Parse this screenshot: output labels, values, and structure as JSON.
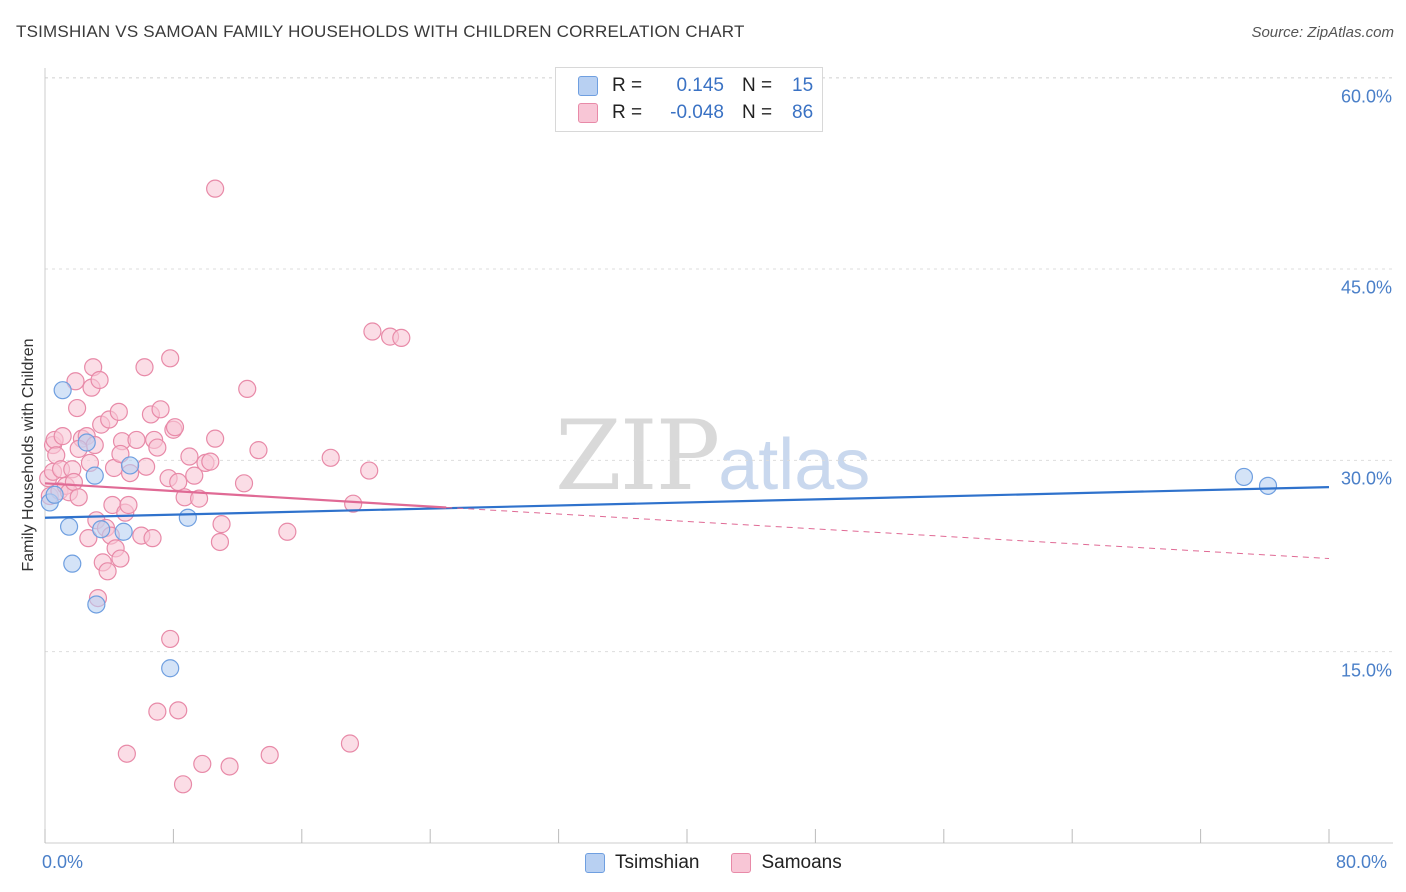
{
  "title": "TSIMSHIAN VS SAMOAN FAMILY HOUSEHOLDS WITH CHILDREN CORRELATION CHART",
  "source": "Source: ZipAtlas.com",
  "watermark": {
    "zip": "ZIP",
    "atlas": "atlas"
  },
  "colors": {
    "tsimshian_fill": "#b8d0f2",
    "tsimshian_stroke": "#6f9fe0",
    "tsimshian_line": "#2f72cc",
    "samoan_fill": "#f8c6d6",
    "samoan_stroke": "#e88aa8",
    "samoan_line": "#e06a95",
    "grid": "#dddddd",
    "tick_text": "#4a7fc8"
  },
  "legend": {
    "rows": [
      {
        "r_label": "R =",
        "r_value": "0.145",
        "n_label": "N =",
        "n_value": "15"
      },
      {
        "r_label": "R =",
        "r_value": "-0.048",
        "n_label": "N =",
        "n_value": "86"
      }
    ]
  },
  "bottom_legend": [
    "Tsimshian",
    "Samoans"
  ],
  "chart_data": {
    "type": "scatter",
    "title": "TSIMSHIAN VS SAMOAN FAMILY HOUSEHOLDS WITH CHILDREN CORRELATION CHART",
    "xlabel": "",
    "ylabel": "Family Households with Children",
    "xlim": [
      0,
      80
    ],
    "ylim": [
      0,
      63
    ],
    "y_ticks": [
      15,
      30,
      45,
      60
    ],
    "y_tick_labels": [
      "15.0%",
      "30.0%",
      "45.0%",
      "60.0%"
    ],
    "x_tick_labels": [
      "0.0%",
      "80.0%"
    ],
    "grid": true,
    "series": [
      {
        "name": "Tsimshian",
        "trend": {
          "x": [
            0,
            80
          ],
          "y": [
            25.5,
            27.9
          ],
          "dashed_from": null
        },
        "points": [
          [
            0.3,
            26.7
          ],
          [
            0.6,
            27.3
          ],
          [
            1.1,
            35.5
          ],
          [
            1.5,
            24.8
          ],
          [
            1.7,
            21.9
          ],
          [
            2.6,
            31.4
          ],
          [
            3.1,
            28.8
          ],
          [
            3.2,
            18.7
          ],
          [
            3.5,
            24.6
          ],
          [
            4.9,
            24.4
          ],
          [
            5.3,
            29.6
          ],
          [
            7.8,
            13.7
          ],
          [
            8.9,
            25.5
          ],
          [
            74.7,
            28.7
          ],
          [
            76.2,
            28.0
          ]
        ]
      },
      {
        "name": "Samoans",
        "trend": {
          "x": [
            0,
            25,
            80
          ],
          "y": [
            28.2,
            26.3,
            22.3
          ],
          "dashed_from": 25
        },
        "points": [
          [
            0.2,
            28.6
          ],
          [
            0.3,
            27.2
          ],
          [
            0.5,
            31.2
          ],
          [
            0.5,
            29.1
          ],
          [
            0.6,
            31.6
          ],
          [
            0.7,
            30.4
          ],
          [
            0.9,
            27.6
          ],
          [
            1.0,
            29.3
          ],
          [
            1.1,
            31.9
          ],
          [
            1.3,
            28.0
          ],
          [
            1.5,
            27.5
          ],
          [
            1.7,
            29.3
          ],
          [
            1.8,
            28.3
          ],
          [
            1.9,
            36.2
          ],
          [
            2.0,
            34.1
          ],
          [
            2.1,
            27.1
          ],
          [
            2.3,
            31.7
          ],
          [
            2.6,
            31.9
          ],
          [
            2.7,
            23.9
          ],
          [
            2.8,
            29.8
          ],
          [
            2.9,
            35.7
          ],
          [
            3.0,
            37.3
          ],
          [
            3.1,
            31.2
          ],
          [
            3.2,
            25.3
          ],
          [
            3.3,
            19.2
          ],
          [
            3.4,
            36.3
          ],
          [
            3.5,
            32.8
          ],
          [
            3.6,
            22.0
          ],
          [
            3.8,
            24.7
          ],
          [
            3.9,
            21.3
          ],
          [
            4.0,
            33.2
          ],
          [
            4.1,
            24.1
          ],
          [
            4.2,
            26.5
          ],
          [
            4.3,
            29.4
          ],
          [
            4.4,
            23.1
          ],
          [
            4.6,
            33.8
          ],
          [
            4.7,
            22.3
          ],
          [
            4.8,
            31.5
          ],
          [
            5.0,
            25.9
          ],
          [
            5.2,
            26.5
          ],
          [
            5.3,
            29.0
          ],
          [
            5.7,
            31.6
          ],
          [
            6.0,
            24.1
          ],
          [
            6.2,
            37.3
          ],
          [
            6.3,
            29.5
          ],
          [
            6.6,
            33.6
          ],
          [
            6.7,
            23.9
          ],
          [
            6.8,
            31.6
          ],
          [
            7.0,
            31.0
          ],
          [
            7.2,
            34.0
          ],
          [
            7.7,
            28.6
          ],
          [
            7.8,
            16.0
          ],
          [
            8.0,
            32.4
          ],
          [
            8.1,
            32.6
          ],
          [
            8.3,
            28.3
          ],
          [
            8.7,
            27.1
          ],
          [
            9.0,
            30.3
          ],
          [
            9.3,
            28.8
          ],
          [
            10.0,
            29.8
          ],
          [
            10.3,
            29.9
          ],
          [
            10.6,
            31.7
          ],
          [
            10.9,
            23.6
          ],
          [
            12.4,
            28.2
          ],
          [
            12.6,
            35.6
          ],
          [
            13.3,
            30.8
          ],
          [
            15.1,
            24.4
          ],
          [
            17.8,
            30.2
          ],
          [
            19.2,
            26.6
          ],
          [
            20.2,
            29.2
          ],
          [
            20.4,
            40.1
          ],
          [
            21.5,
            39.7
          ],
          [
            22.2,
            39.6
          ],
          [
            10.6,
            51.3
          ],
          [
            5.1,
            7.0
          ],
          [
            7.0,
            10.3
          ],
          [
            8.3,
            10.4
          ],
          [
            8.6,
            4.6
          ],
          [
            9.8,
            6.2
          ],
          [
            11.5,
            6.0
          ],
          [
            14.0,
            6.9
          ],
          [
            19.0,
            7.8
          ],
          [
            7.8,
            38.0
          ],
          [
            9.6,
            27.0
          ],
          [
            11.0,
            25.0
          ],
          [
            4.7,
            30.5
          ],
          [
            2.1,
            30.9
          ]
        ]
      }
    ]
  }
}
